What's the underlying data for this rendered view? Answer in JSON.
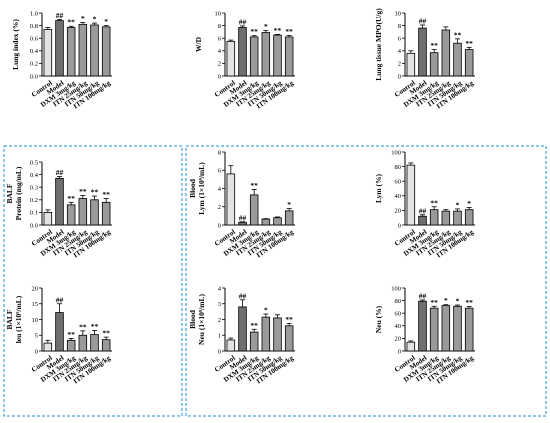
{
  "categories": [
    "Control",
    "Model",
    "DXM 3mg/kg",
    "ITN 25mg/kg",
    "ITN 50mg/kg",
    "ITN 100mg/kg"
  ],
  "colors": {
    "bar_fills": [
      "#e3e3e3",
      "#6f6f6f",
      "#9a9a9a",
      "#9a9a9a",
      "#9a9a9a",
      "#9a9a9a"
    ],
    "frame": "#1f8fd0",
    "axis": "#000000"
  },
  "chart_data": [
    {
      "type": "bar",
      "ylabel": "Lung index (%)",
      "categories": [
        "Control",
        "Model",
        "DXM 3mg/kg",
        "ITN 25mg/kg",
        "ITN 50mg/kg",
        "ITN 100mg/kg"
      ],
      "values": [
        0.74,
        0.88,
        0.77,
        0.82,
        0.81,
        0.78
      ],
      "errors": [
        0.03,
        0.02,
        0.02,
        0.03,
        0.03,
        0.02
      ],
      "significance": [
        "",
        "##",
        "**",
        "*",
        "*",
        "*"
      ],
      "ylim": [
        0,
        1.0
      ],
      "yticks": [
        0,
        0.2,
        0.4,
        0.6,
        0.8,
        1.0
      ],
      "ytick_labels": [
        "0.0",
        "0.2",
        "0.4",
        "0.6",
        "0.8",
        "1.0"
      ]
    },
    {
      "type": "bar",
      "ylabel": "W/D",
      "categories": [
        "Control",
        "Model",
        "DXM 3mg/kg",
        "ITN 25mg/kg",
        "ITN 50mg/kg",
        "ITN 100mg/kg"
      ],
      "values": [
        5.5,
        7.7,
        6.2,
        6.9,
        6.5,
        6.2
      ],
      "errors": [
        0.2,
        0.25,
        0.2,
        0.3,
        0.1,
        0.25
      ],
      "significance": [
        "",
        "##",
        "**",
        "*",
        "**",
        "**"
      ],
      "ylim": [
        0,
        10
      ],
      "yticks": [
        0,
        2,
        4,
        6,
        8,
        10
      ],
      "ytick_labels": [
        "0",
        "2",
        "4",
        "6",
        "8",
        "10"
      ]
    },
    {
      "type": "bar",
      "ylabel": "Lung tissue MPO(U/g)",
      "categories": [
        "Control",
        "Model",
        "DXM 3mg/kg",
        "ITN 25mg/kg",
        "ITN 50mg/kg",
        "ITN 100mg/kg"
      ],
      "values": [
        3.6,
        7.6,
        3.7,
        7.3,
        5.2,
        4.2
      ],
      "errors": [
        0.4,
        0.5,
        0.5,
        0.5,
        0.7,
        0.35
      ],
      "significance": [
        "",
        "##",
        "**",
        "",
        "**",
        "**"
      ],
      "ylim": [
        0,
        10
      ],
      "yticks": [
        0,
        2,
        4,
        6,
        8,
        10
      ],
      "ytick_labels": [
        "0",
        "2",
        "4",
        "6",
        "8",
        "10"
      ]
    },
    {
      "type": "bar",
      "ylabel": "BALF Protein (mg/mL)",
      "categories": [
        "Control",
        "Model",
        "DXM 3mg/kg",
        "ITN 25mg/kg",
        "ITN 50mg/kg",
        "ITN 100mg/kg"
      ],
      "values": [
        0.1,
        0.37,
        0.16,
        0.21,
        0.2,
        0.18
      ],
      "errors": [
        0.02,
        0.015,
        0.02,
        0.025,
        0.03,
        0.03
      ],
      "significance": [
        "",
        "##",
        "**",
        "**",
        "**",
        "**"
      ],
      "ylim": [
        0,
        0.5
      ],
      "yticks": [
        0,
        0.1,
        0.2,
        0.3,
        0.4,
        0.5
      ],
      "ytick_labels": [
        "0.0",
        "0.1",
        "0.2",
        "0.3",
        "0.4",
        "0.5"
      ]
    },
    {
      "type": "bar",
      "ylabel": "Blood Lym (1×10⁹/mL)",
      "categories": [
        "Control",
        "Model",
        "DXM 3mg/kg",
        "ITN 25mg/kg",
        "ITN 50mg/kg",
        "ITN 100mg/kg"
      ],
      "values": [
        5.6,
        0.3,
        3.3,
        0.65,
        0.8,
        1.55
      ],
      "errors": [
        0.9,
        0.05,
        0.6,
        0.05,
        0.08,
        0.25
      ],
      "significance": [
        "",
        "##",
        "**",
        "",
        "",
        "*"
      ],
      "ylim": [
        0,
        8
      ],
      "yticks": [
        0,
        2,
        4,
        6,
        8
      ],
      "ytick_labels": [
        "0",
        "2",
        "4",
        "6",
        "8"
      ]
    },
    {
      "type": "bar",
      "ylabel": "Lym (%)",
      "categories": [
        "Control",
        "Model",
        "DXM 3mg/kg",
        "ITN 25mg/kg",
        "ITN 50mg/kg",
        "ITN 100mg/kg"
      ],
      "values": [
        82,
        12,
        21,
        19,
        19,
        21
      ],
      "errors": [
        3,
        2,
        4,
        2,
        3,
        3
      ],
      "significance": [
        "",
        "##",
        "**",
        "",
        "*",
        "*"
      ],
      "ylim": [
        0,
        100
      ],
      "yticks": [
        0,
        20,
        40,
        60,
        80,
        100
      ],
      "ytick_labels": [
        "0",
        "20",
        "40",
        "60",
        "80",
        "100"
      ]
    },
    {
      "type": "bar",
      "ylabel": "BALF leu (1×10⁵/mL)",
      "categories": [
        "Control",
        "Model",
        "DXM 3mg/kg",
        "ITN 25mg/kg",
        "ITN 50mg/kg",
        "ITN 100mg/kg"
      ],
      "values": [
        2.5,
        12.2,
        3.4,
        5.0,
        5.2,
        3.6
      ],
      "errors": [
        0.9,
        2.8,
        0.6,
        1.4,
        1.3,
        0.8
      ],
      "significance": [
        "",
        "##",
        "**",
        "**",
        "**",
        "**"
      ],
      "ylim": [
        0,
        20
      ],
      "yticks": [
        0,
        5,
        10,
        15,
        20
      ],
      "ytick_labels": [
        "0",
        "5",
        "10",
        "15",
        "20"
      ]
    },
    {
      "type": "bar",
      "ylabel": "Blood Neu (1×10⁹/mL)",
      "categories": [
        "Control",
        "Model",
        "DXM 3mg/kg",
        "ITN 25mg/kg",
        "ITN 50mg/kg",
        "ITN 100mg/kg"
      ],
      "values": [
        0.7,
        2.8,
        1.2,
        2.15,
        2.1,
        1.6
      ],
      "errors": [
        0.12,
        0.45,
        0.18,
        0.2,
        0.2,
        0.15
      ],
      "significance": [
        "",
        "##",
        "**",
        "*",
        "",
        "**"
      ],
      "ylim": [
        0,
        4
      ],
      "yticks": [
        0,
        1,
        2,
        3,
        4
      ],
      "ytick_labels": [
        "0",
        "1",
        "2",
        "3",
        "4"
      ]
    },
    {
      "type": "bar",
      "ylabel": "Neu (%)",
      "categories": [
        "Control",
        "Model",
        "DXM 3mg/kg",
        "ITN 25mg/kg",
        "ITN 50mg/kg",
        "ITN 100mg/kg"
      ],
      "values": [
        14,
        79,
        68,
        72,
        71,
        68
      ],
      "errors": [
        2,
        2,
        3,
        1.5,
        2,
        2.5
      ],
      "significance": [
        "",
        "##",
        "**",
        "*",
        "*",
        "**"
      ],
      "ylim": [
        0,
        100
      ],
      "yticks": [
        0,
        20,
        40,
        60,
        80,
        100
      ],
      "ytick_labels": [
        "0",
        "20",
        "40",
        "60",
        "80",
        "100"
      ]
    }
  ]
}
